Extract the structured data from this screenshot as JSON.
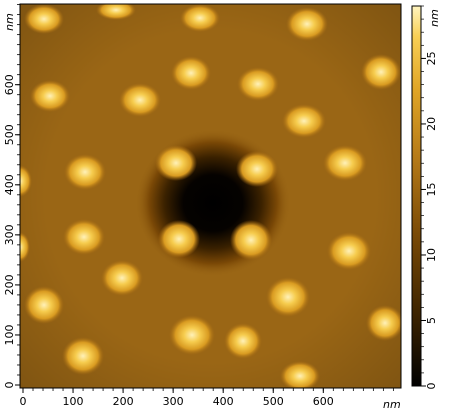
{
  "image": {
    "kind": "AFM height map",
    "colormap": [
      "#000000",
      "#3a2200",
      "#7a4a06",
      "#b57a18",
      "#e0a526",
      "#f8cf55",
      "#fff4bf"
    ],
    "background_color": "#9a6615",
    "features": {
      "islands": "bright round bumps scattered over a flat brown surface",
      "pit": "dark irregular depression near the center of the scan"
    }
  },
  "x_axis": {
    "unit": "nm",
    "ticks": [
      {
        "value": 0,
        "label": "0"
      },
      {
        "value": 100,
        "label": "100"
      },
      {
        "value": 200,
        "label": "200"
      },
      {
        "value": 300,
        "label": "300"
      },
      {
        "value": 400,
        "label": "400"
      },
      {
        "value": 500,
        "label": "500"
      },
      {
        "value": 600,
        "label": "600"
      }
    ]
  },
  "y_axis": {
    "unit": "nm",
    "ticks": [
      {
        "value": 0,
        "label": "0"
      },
      {
        "value": 100,
        "label": "100"
      },
      {
        "value": 200,
        "label": "200"
      },
      {
        "value": 300,
        "label": "300"
      },
      {
        "value": 400,
        "label": "400"
      },
      {
        "value": 500,
        "label": "500"
      },
      {
        "value": 600,
        "label": "600"
      }
    ]
  },
  "colorbar": {
    "unit": "nm",
    "min": 0,
    "max": 29,
    "ticks": [
      {
        "value": 0,
        "label": "0"
      },
      {
        "value": 5,
        "label": "5"
      },
      {
        "value": 10,
        "label": "10"
      },
      {
        "value": 15,
        "label": "15"
      },
      {
        "value": 20,
        "label": "20"
      },
      {
        "value": 25,
        "label": "25"
      }
    ]
  }
}
